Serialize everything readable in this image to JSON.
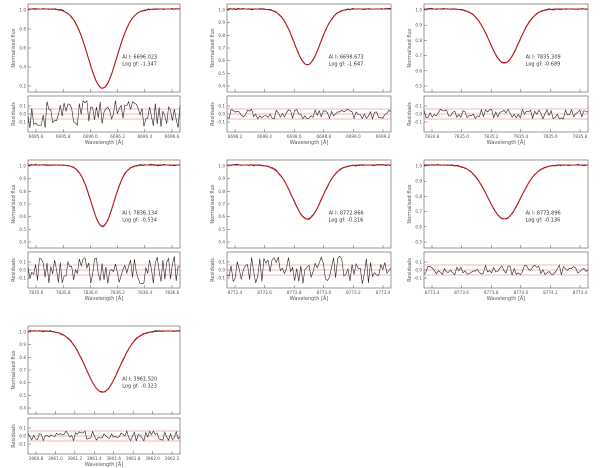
{
  "chart_data": [
    {
      "type": "line",
      "panel": "1",
      "ylabel": "Normalised flux",
      "xlabel": "Wavelength [Å]",
      "resid_ylabel": "Residuals",
      "annotation": [
        "Al I: 6696.023",
        "Log gf: -1.347"
      ],
      "depth": 0.88,
      "sigma": 0.095,
      "yticks": [
        "1.0",
        "0.8",
        "0.6",
        "0.4",
        "0.2"
      ],
      "xticks": [
        "6695.6",
        "6695.8",
        "6696.0",
        "6696.2",
        "6696.4",
        "6696.6"
      ],
      "residual_amp": "large"
    },
    {
      "type": "line",
      "panel": "2",
      "ylabel": "Normalised flux",
      "xlabel": "Wavelength [Å]",
      "resid_ylabel": "Residuals",
      "annotation": [
        "Al I: 6698.673",
        "Log gf: -1.647"
      ],
      "depth": 0.62,
      "sigma": 0.08,
      "yticks": [
        "1.0",
        "0.9",
        "0.8",
        "0.7",
        "0.6",
        "0.5",
        "0.4"
      ],
      "xticks": [
        "6698.2",
        "6698.4",
        "6698.6",
        "6698.8",
        "6699.0",
        "6699.2"
      ],
      "residual_amp": "small"
    },
    {
      "type": "line",
      "panel": "3",
      "ylabel": "Normalised flux",
      "xlabel": "Wavelength [Å]",
      "resid_ylabel": "Residuals",
      "annotation": [
        "Al I: 7835.309",
        "Log gf: -0.689"
      ],
      "depth": 0.6,
      "sigma": 0.09,
      "yticks": [
        "1.0",
        "0.9",
        "0.8",
        "0.7",
        "0.6",
        "0.5"
      ],
      "xticks": [
        "7834.8",
        "7835.0",
        "7835.2",
        "7835.4",
        "7835.6",
        "7835.8"
      ],
      "residual_amp": "small"
    },
    {
      "type": "line",
      "panel": "4",
      "ylabel": "Normalised flux",
      "xlabel": "Wavelength [Å]",
      "resid_ylabel": "Residuals",
      "annotation": [
        "Al I: 7836.134",
        "Log gf: -0.534"
      ],
      "depth": 0.68,
      "sigma": 0.075,
      "yticks": [
        "1.0",
        "0.9",
        "0.8",
        "0.7",
        "0.6",
        "0.5",
        "0.4"
      ],
      "xticks": [
        "7835.6",
        "7835.8",
        "7836.0",
        "7836.2",
        "7836.4",
        "7836.6"
      ],
      "residual_amp": "large"
    },
    {
      "type": "line",
      "panel": "5",
      "ylabel": "Normalised flux",
      "xlabel": "Wavelength [Å]",
      "resid_ylabel": "Residuals",
      "annotation": [
        "Al I: 8772.866",
        "Log gf: -0.316"
      ],
      "depth": 0.6,
      "sigma": 0.09,
      "yticks": [
        "1.0",
        "0.9",
        "0.8",
        "0.7",
        "0.6",
        "0.5",
        "0.4"
      ],
      "xticks": [
        "8772.4",
        "8772.6",
        "8772.8",
        "8773.0",
        "8773.2",
        "8773.4"
      ],
      "residual_amp": "large"
    },
    {
      "type": "line",
      "panel": "6",
      "ylabel": "Normalised flux",
      "xlabel": "Wavelength [Å]",
      "resid_ylabel": "Residuals",
      "annotation": [
        "Al I: 8773.896",
        "Log gf: -0.136"
      ],
      "depth": 0.6,
      "sigma": 0.1,
      "yticks": [
        "1.0",
        "0.9",
        "0.8",
        "0.7",
        "0.6",
        "0.5"
      ],
      "xticks": [
        "8773.4",
        "8773.6",
        "8773.8",
        "8774.0",
        "8774.2",
        "8774.4"
      ],
      "residual_amp": "small"
    },
    {
      "type": "line",
      "panel": "7",
      "ylabel": "Normalised flux",
      "xlabel": "Wavelength [Å]",
      "resid_ylabel": "Residuals",
      "annotation": [
        "Al I: 3961.520",
        "Log gf: -0.323"
      ],
      "depth": 0.68,
      "sigma": 0.11,
      "yticks": [
        "1.0",
        "0.9",
        "0.8",
        "0.7",
        "0.6",
        "0.5",
        "0.4"
      ],
      "xticks": [
        "3960.8",
        "3961.0",
        "3961.2",
        "3961.4",
        "3961.6",
        "3961.8",
        "3962.0",
        "3962.2"
      ],
      "residual_amp": "small"
    }
  ],
  "colors": {
    "observed": "#222222",
    "model": "#c0181c",
    "refline": "#e07070"
  }
}
